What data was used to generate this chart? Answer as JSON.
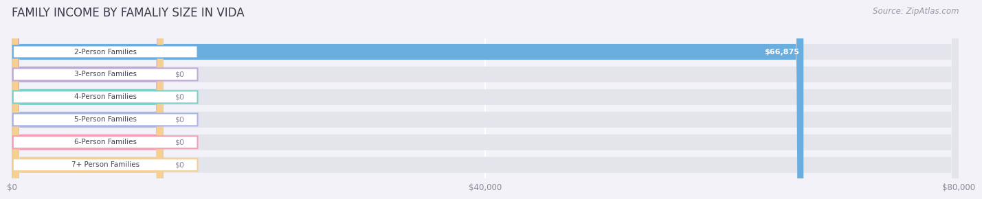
{
  "title": "FAMILY INCOME BY FAMALIY SIZE IN VIDA",
  "source": "Source: ZipAtlas.com",
  "categories": [
    "2-Person Families",
    "3-Person Families",
    "4-Person Families",
    "5-Person Families",
    "6-Person Families",
    "7+ Person Families"
  ],
  "values": [
    66875,
    0,
    0,
    0,
    0,
    0
  ],
  "bar_colors": [
    "#6aaee0",
    "#c0a8d8",
    "#7ecfc8",
    "#aab4e8",
    "#f4a0b8",
    "#f5d090"
  ],
  "value_labels": [
    "$66,875",
    "$0",
    "$0",
    "$0",
    "$0",
    "$0"
  ],
  "xlim": [
    0,
    80000
  ],
  "xticks": [
    0,
    40000,
    80000
  ],
  "xtick_labels": [
    "$0",
    "$40,000",
    "$80,000"
  ],
  "background_color": "#f2f2f8",
  "bar_bg_color": "#e4e4ec",
  "title_fontsize": 12,
  "source_fontsize": 8.5,
  "figsize": [
    14.06,
    3.05
  ]
}
